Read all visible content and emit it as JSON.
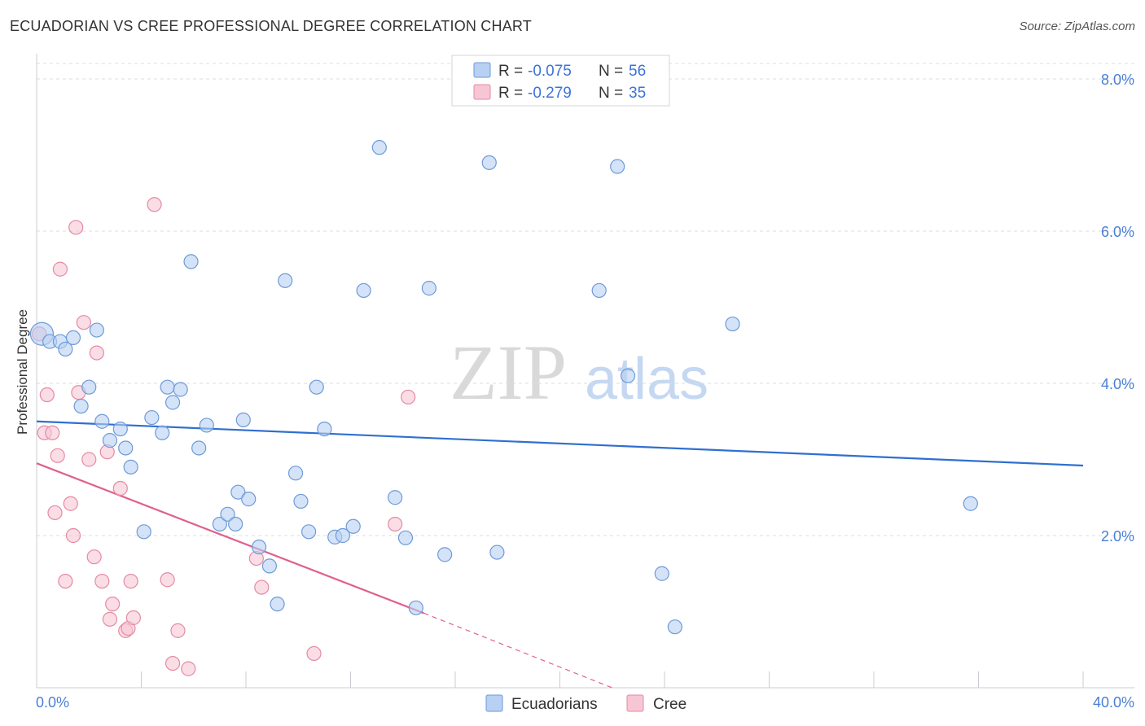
{
  "title": "ECUADORIAN VS CREE PROFESSIONAL DEGREE CORRELATION CHART",
  "source": "Source: ZipAtlas.com",
  "watermark": {
    "zip": "ZIP",
    "atlas": "atlas"
  },
  "colors": {
    "blue_fill": "#b8d0f2",
    "blue_stroke": "#6e9ad8",
    "blue_line": "#2f6fd0",
    "pink_fill": "#f7c6d4",
    "pink_stroke": "#e58aa6",
    "pink_line": "#e0608e",
    "grid": "#d9dde4",
    "axis_text": "#4a7fd6"
  },
  "legend": {
    "rows": [
      {
        "r_label": "R =",
        "r_value": "-0.075",
        "n_label": "N =",
        "n_value": "56"
      },
      {
        "r_label": "R =",
        "r_value": "-0.279",
        "n_label": "N =",
        "n_value": "35"
      }
    ]
  },
  "chart_data": {
    "type": "scatter",
    "title": "ECUADORIAN VS CREE PROFESSIONAL DEGREE CORRELATION CHART",
    "xlabel": "",
    "ylabel": "Professional Degree",
    "xlim": [
      0,
      40
    ],
    "ylim": [
      0,
      8
    ],
    "x_tick_labels": [
      "0.0%",
      "40.0%"
    ],
    "y_tick_labels": [
      "2.0%",
      "4.0%",
      "6.0%",
      "8.0%"
    ],
    "y_tick_values": [
      2,
      4,
      6,
      8
    ],
    "grid": true,
    "series": [
      {
        "name": "Ecuadorians",
        "r": -0.075,
        "n": 56,
        "trend": {
          "x0": 0,
          "y0": 3.5,
          "x1": 40,
          "y1": 2.92
        },
        "points": [
          [
            0.2,
            4.65
          ],
          [
            0.5,
            4.55
          ],
          [
            0.9,
            4.55
          ],
          [
            1.1,
            4.45
          ],
          [
            1.4,
            4.6
          ],
          [
            2.3,
            4.7
          ],
          [
            1.7,
            3.7
          ],
          [
            2.0,
            3.95
          ],
          [
            2.5,
            3.5
          ],
          [
            2.8,
            3.25
          ],
          [
            3.2,
            3.4
          ],
          [
            3.4,
            3.15
          ],
          [
            3.6,
            2.9
          ],
          [
            4.1,
            2.05
          ],
          [
            4.4,
            3.55
          ],
          [
            4.8,
            3.35
          ],
          [
            5.0,
            3.95
          ],
          [
            5.2,
            3.75
          ],
          [
            5.5,
            3.92
          ],
          [
            5.9,
            5.6
          ],
          [
            6.2,
            3.15
          ],
          [
            6.5,
            3.45
          ],
          [
            7.0,
            2.15
          ],
          [
            7.3,
            2.28
          ],
          [
            7.6,
            2.15
          ],
          [
            7.7,
            2.57
          ],
          [
            7.9,
            3.52
          ],
          [
            8.1,
            2.48
          ],
          [
            8.5,
            1.85
          ],
          [
            8.9,
            1.6
          ],
          [
            9.2,
            1.1
          ],
          [
            9.5,
            5.35
          ],
          [
            9.9,
            2.82
          ],
          [
            10.1,
            2.45
          ],
          [
            10.4,
            2.05
          ],
          [
            10.7,
            3.95
          ],
          [
            11.0,
            3.4
          ],
          [
            11.4,
            1.98
          ],
          [
            11.7,
            2.0
          ],
          [
            12.1,
            2.12
          ],
          [
            12.5,
            5.22
          ],
          [
            13.1,
            7.1
          ],
          [
            13.7,
            2.5
          ],
          [
            14.1,
            1.97
          ],
          [
            14.5,
            1.05
          ],
          [
            15.0,
            5.25
          ],
          [
            15.6,
            1.75
          ],
          [
            17.3,
            6.9
          ],
          [
            17.6,
            1.78
          ],
          [
            21.5,
            5.22
          ],
          [
            22.2,
            6.85
          ],
          [
            22.6,
            4.1
          ],
          [
            23.9,
            1.5
          ],
          [
            24.4,
            0.8
          ],
          [
            26.6,
            4.78
          ],
          [
            35.7,
            2.42
          ]
        ]
      },
      {
        "name": "Cree",
        "r": -0.279,
        "n": 35,
        "trend": {
          "x0": 0,
          "y0": 2.95,
          "x1": 14.8,
          "y1": 0.98,
          "dash_x1": 22.0,
          "dash_y1": 0.0
        },
        "points": [
          [
            0.1,
            4.65
          ],
          [
            0.3,
            3.35
          ],
          [
            0.4,
            3.85
          ],
          [
            0.6,
            3.35
          ],
          [
            0.7,
            2.3
          ],
          [
            0.8,
            3.05
          ],
          [
            0.9,
            5.5
          ],
          [
            1.1,
            1.4
          ],
          [
            1.3,
            2.42
          ],
          [
            1.4,
            2.0
          ],
          [
            1.5,
            6.05
          ],
          [
            1.6,
            3.88
          ],
          [
            1.8,
            4.8
          ],
          [
            2.0,
            3.0
          ],
          [
            2.2,
            1.72
          ],
          [
            2.3,
            4.4
          ],
          [
            2.5,
            1.4
          ],
          [
            2.7,
            3.1
          ],
          [
            2.8,
            0.9
          ],
          [
            2.9,
            1.1
          ],
          [
            3.2,
            2.62
          ],
          [
            3.4,
            0.75
          ],
          [
            3.5,
            0.78
          ],
          [
            3.6,
            1.4
          ],
          [
            3.7,
            0.92
          ],
          [
            4.5,
            6.35
          ],
          [
            5.0,
            1.42
          ],
          [
            5.2,
            0.32
          ],
          [
            5.4,
            0.75
          ],
          [
            5.8,
            0.25
          ],
          [
            8.4,
            1.7
          ],
          [
            8.6,
            1.32
          ],
          [
            10.6,
            0.45
          ],
          [
            13.7,
            2.15
          ],
          [
            14.2,
            3.82
          ]
        ]
      }
    ]
  },
  "bottom_legend": [
    "Ecuadorians",
    "Cree"
  ]
}
